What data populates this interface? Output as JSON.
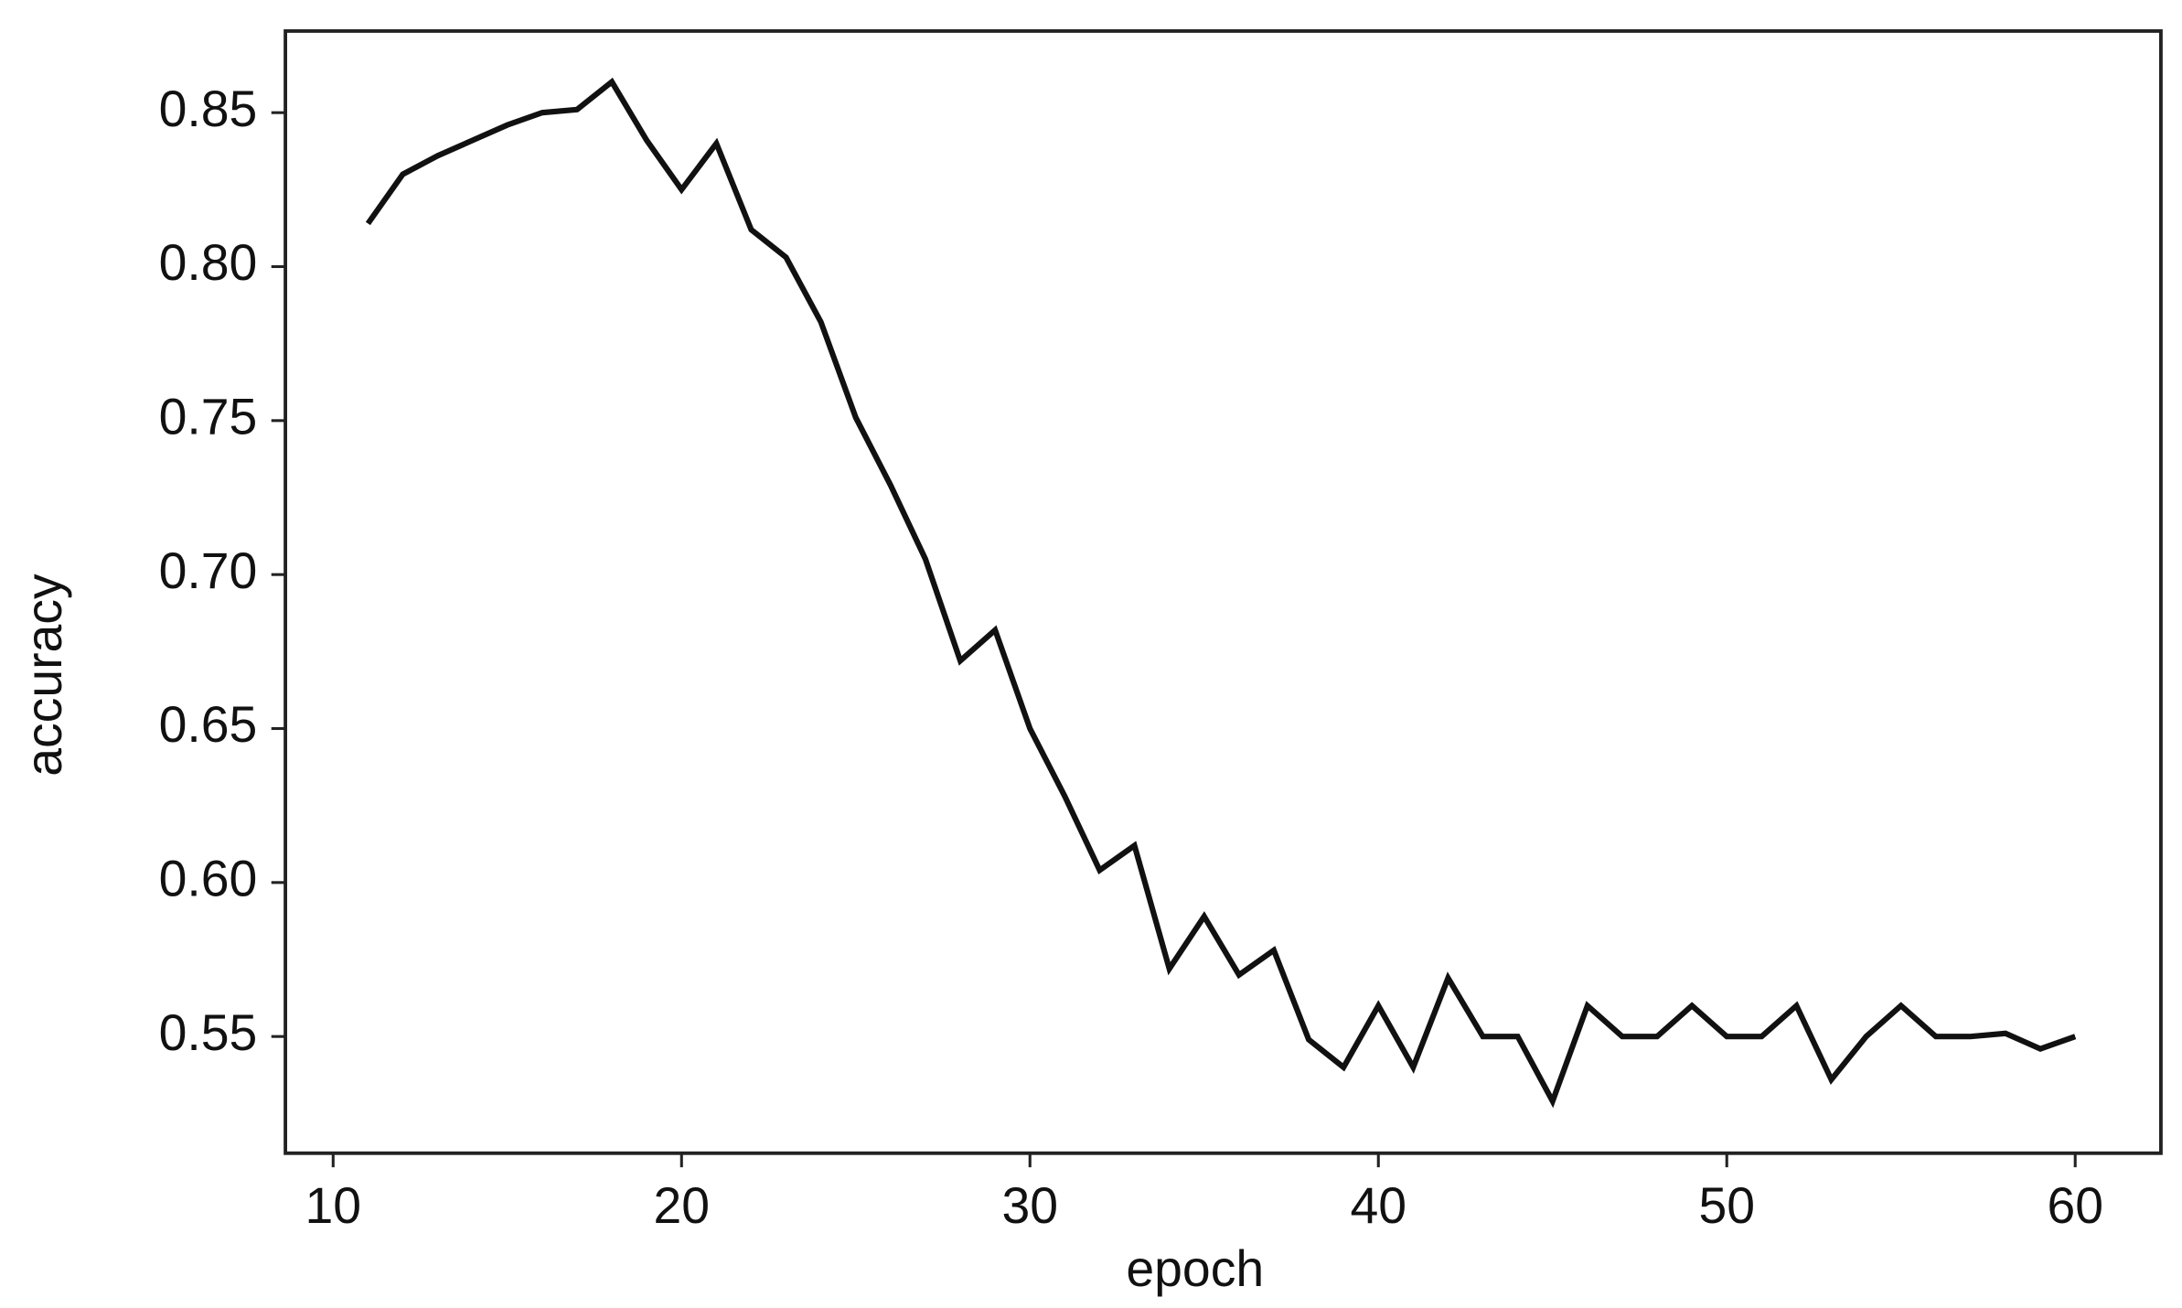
{
  "chart_data": {
    "type": "line",
    "x": [
      11,
      12,
      13,
      14,
      15,
      16,
      17,
      18,
      19,
      20,
      21,
      22,
      23,
      24,
      25,
      26,
      27,
      28,
      29,
      30,
      31,
      32,
      33,
      34,
      35,
      36,
      37,
      38,
      39,
      40,
      41,
      42,
      43,
      44,
      45,
      46,
      47,
      48,
      49,
      50,
      51,
      52,
      53,
      54,
      55,
      56,
      57,
      58,
      59,
      60
    ],
    "series": [
      {
        "name": "accuracy",
        "color": "#111111",
        "values": [
          0.814,
          0.83,
          0.836,
          0.841,
          0.846,
          0.85,
          0.851,
          0.86,
          0.841,
          0.825,
          0.84,
          0.812,
          0.803,
          0.782,
          0.751,
          0.729,
          0.705,
          0.672,
          0.682,
          0.65,
          0.628,
          0.604,
          0.612,
          0.572,
          0.589,
          0.57,
          0.578,
          0.549,
          0.54,
          0.56,
          0.54,
          0.569,
          0.55,
          0.55,
          0.529,
          0.56,
          0.55,
          0.55,
          0.56,
          0.55,
          0.55,
          0.56,
          0.536,
          0.55,
          0.56,
          0.55,
          0.55,
          0.551,
          0.546,
          0.55
        ]
      }
    ],
    "x_label": "epoch",
    "y_label": "accuracy",
    "xlim": [
      8.63,
      62.46
    ],
    "xticks": [
      10,
      20,
      30,
      40,
      50,
      60
    ],
    "ylim": [
      0.5121,
      0.8765
    ],
    "yticks": [
      {
        "value": 0.55,
        "label": "0.55"
      },
      0.65,
      0.75,
      0.85,
      {
        "value": 0.6,
        "label": "0.60"
      },
      {
        "value": 0.7,
        "label": "0.70"
      },
      {
        "value": 0.8,
        "label": "0.80"
      }
    ],
    "grid": false
  }
}
